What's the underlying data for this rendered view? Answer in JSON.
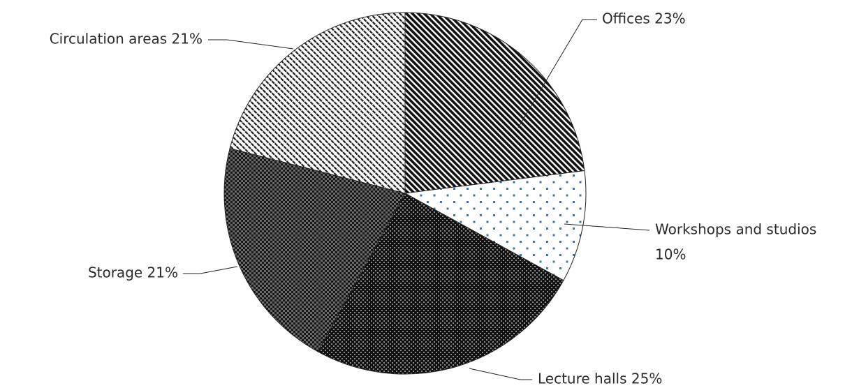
{
  "chart_data": {
    "type": "pie",
    "title": "",
    "slices": [
      {
        "label": "Offices 23%",
        "value": 23,
        "pattern": "stripes-dark"
      },
      {
        "label": [
          "Workshops and studios",
          "10%"
        ],
        "value": 10,
        "pattern": "dots-blue"
      },
      {
        "label": "Lecture halls 25%",
        "value": 25,
        "pattern": "checker-dark"
      },
      {
        "label": "Storage 21%",
        "value": 21,
        "pattern": "checker-gray"
      },
      {
        "label": "Circulation areas 21%",
        "value": 21,
        "pattern": "stripes-light"
      }
    ],
    "start_angle_deg": 0,
    "direction": "clockwise",
    "legend": "none"
  },
  "colors": {
    "outline": "#222222",
    "dot": "#3a78b5",
    "dark": "#111111",
    "gray": "#6a6a6a"
  }
}
